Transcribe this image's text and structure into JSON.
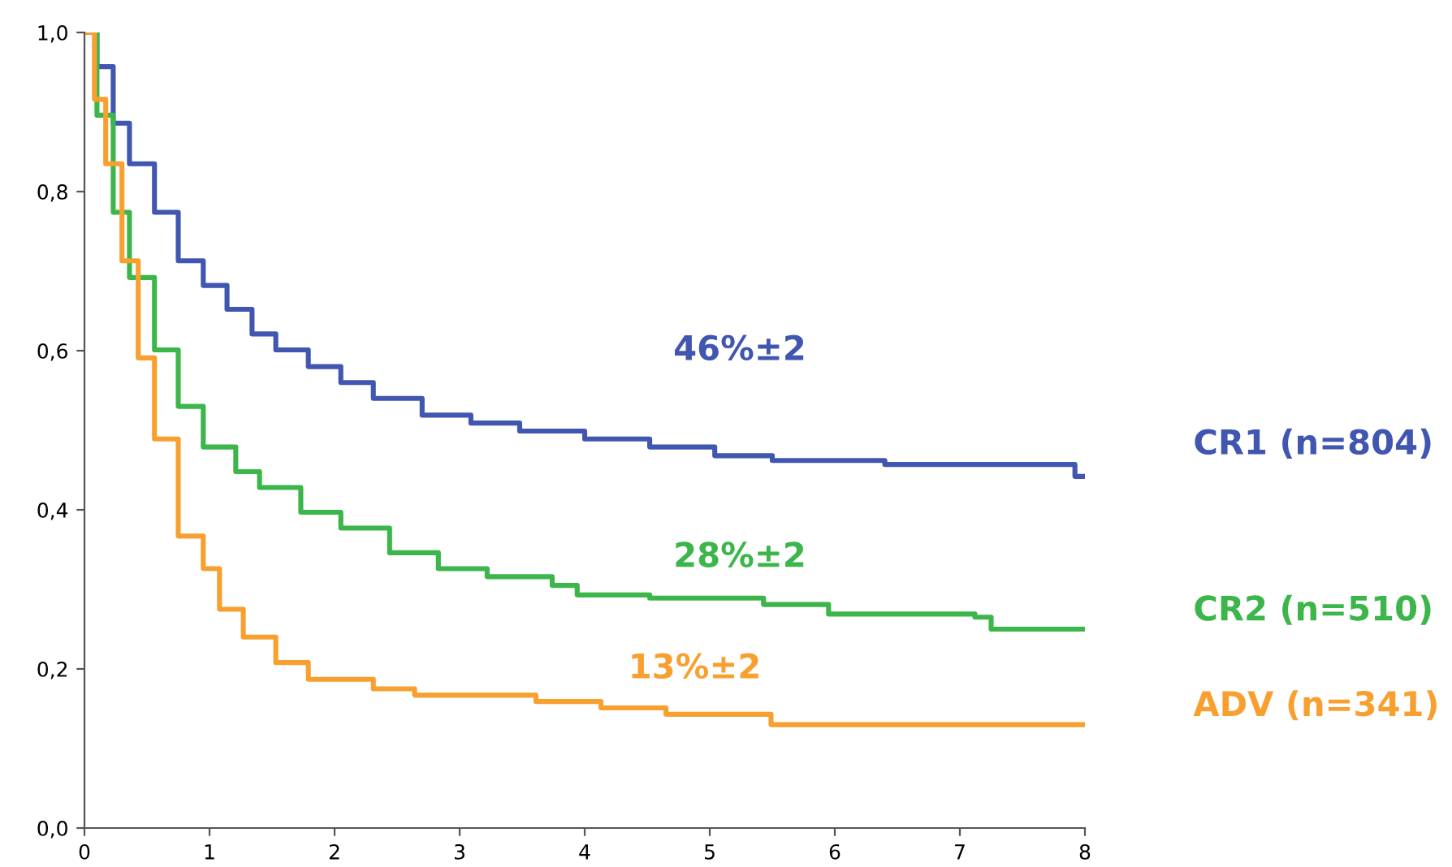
{
  "chart_data": {
    "type": "step",
    "xlim": [
      0,
      8
    ],
    "ylim": [
      0,
      1.0
    ],
    "xticks": [
      0,
      1,
      2,
      3,
      4,
      5,
      6,
      7,
      8
    ],
    "yticks": [
      {
        "value": 0,
        "label": "0,0"
      },
      {
        "value": 0.2,
        "label": "0,2"
      },
      {
        "value": 0.4,
        "label": "0,4"
      },
      {
        "value": 0.6,
        "label": "0,6"
      },
      {
        "value": 0.8,
        "label": "0,8"
      },
      {
        "value": 1.0,
        "label": "1,0"
      }
    ],
    "grid": false,
    "legend": false,
    "annotations": [
      "46%±2",
      "28%±2",
      "13%±2"
    ],
    "series": [
      {
        "name": "CR1 (n=804)",
        "color": "#4156b0",
        "x": [
          0,
          0.1,
          0.23,
          0.36,
          0.56,
          0.75,
          0.95,
          1.14,
          1.34,
          1.53,
          1.79,
          2.05,
          2.31,
          2.7,
          3.09,
          3.48,
          4.0,
          4.52,
          5.04,
          5.5,
          6.4,
          7.92,
          8
        ],
        "values": [
          1.0,
          0.957,
          0.886,
          0.835,
          0.774,
          0.713,
          0.682,
          0.652,
          0.621,
          0.601,
          0.58,
          0.56,
          0.54,
          0.519,
          0.509,
          0.499,
          0.489,
          0.479,
          0.468,
          0.462,
          0.457,
          0.442,
          0.442
        ]
      },
      {
        "name": "CR2 (n=510)",
        "color": "#3cb64a",
        "x": [
          0,
          0.1,
          0.23,
          0.36,
          0.56,
          0.75,
          0.95,
          1.21,
          1.4,
          1.73,
          2.05,
          2.44,
          2.83,
          3.22,
          3.74,
          3.94,
          4.52,
          5.43,
          5.95,
          7.12,
          7.25,
          8
        ],
        "values": [
          1.0,
          0.896,
          0.774,
          0.692,
          0.601,
          0.53,
          0.479,
          0.448,
          0.428,
          0.397,
          0.377,
          0.346,
          0.326,
          0.316,
          0.305,
          0.293,
          0.289,
          0.281,
          0.269,
          0.265,
          0.25,
          0.25
        ]
      },
      {
        "name": "ADV (n=341)",
        "color": "#f7a030",
        "x": [
          0,
          0.08,
          0.17,
          0.3,
          0.43,
          0.56,
          0.75,
          0.95,
          1.08,
          1.27,
          1.53,
          1.79,
          2.31,
          2.64,
          3.61,
          4.13,
          4.65,
          5.49,
          8
        ],
        "values": [
          1.0,
          0.916,
          0.835,
          0.713,
          0.591,
          0.489,
          0.367,
          0.326,
          0.275,
          0.24,
          0.208,
          0.187,
          0.175,
          0.167,
          0.159,
          0.151,
          0.143,
          0.13,
          0.13
        ]
      }
    ]
  }
}
